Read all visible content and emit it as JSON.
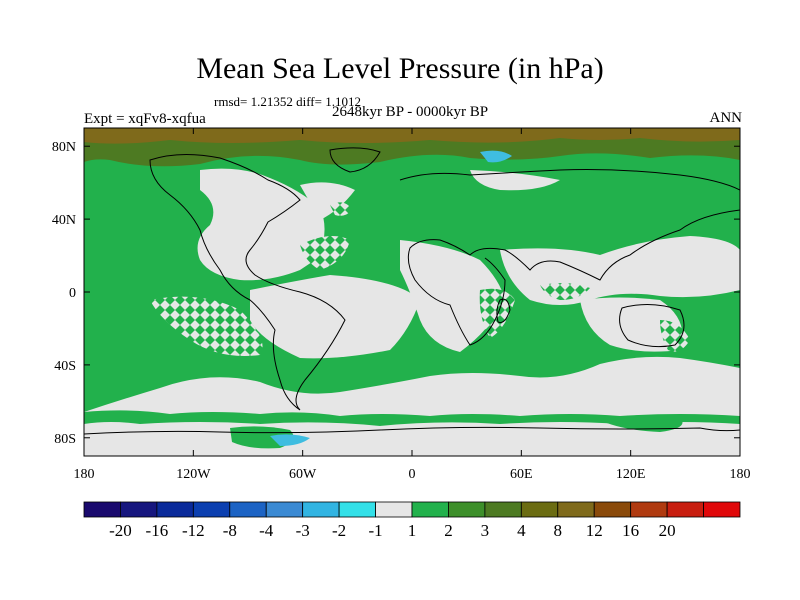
{
  "title": "Mean Sea Level Pressure (in hPa)",
  "stats": "rmsd= 1.21352 diff= 1.1012",
  "experiment": "Expt = xqFv8-xqfua",
  "period": "2648kyr BP - 0000kyr BP",
  "season": "ANN",
  "map": {
    "projection": "cylindrical-equidistant",
    "lon_range": [
      -180,
      180
    ],
    "lat_range": [
      -90,
      90
    ],
    "y_ticks": [
      {
        "lat": 80,
        "label": "80N"
      },
      {
        "lat": 40,
        "label": "40N"
      },
      {
        "lat": 0,
        "label": "0"
      },
      {
        "lat": -40,
        "label": "40S"
      },
      {
        "lat": -80,
        "label": "80S"
      }
    ],
    "x_ticks": [
      {
        "lon": -180,
        "label": "180"
      },
      {
        "lon": -120,
        "label": "120W"
      },
      {
        "lon": -60,
        "label": "60W"
      },
      {
        "lon": 0,
        "label": "0"
      },
      {
        "lon": 60,
        "label": "60E"
      },
      {
        "lon": 120,
        "label": "120E"
      },
      {
        "lon": 180,
        "label": "180"
      }
    ],
    "colors": {
      "neutral": "#e6e6e6",
      "green": "#22b14c",
      "olive": "#4d7a22",
      "brown": "#7f6a1b",
      "cyan": "#3fbde0",
      "coast": "#000000"
    }
  },
  "colorbar": {
    "colors": [
      "#1a0a6e",
      "#16167e",
      "#0a2a9a",
      "#0b3fb0",
      "#1c63c4",
      "#3b8ad3",
      "#31b4e2",
      "#33e0e8",
      "#e6e6e6",
      "#22b14c",
      "#3d8f2a",
      "#4d7a22",
      "#6b6c12",
      "#7f6a1b",
      "#8a4a0a",
      "#b03a10",
      "#c81e10",
      "#e0080a"
    ],
    "labels": [
      "-20",
      "-16",
      "-12",
      "-8",
      "-4",
      "-3",
      "-2",
      "-1",
      "1",
      "2",
      "3",
      "4",
      "8",
      "12",
      "16",
      "20"
    ]
  }
}
